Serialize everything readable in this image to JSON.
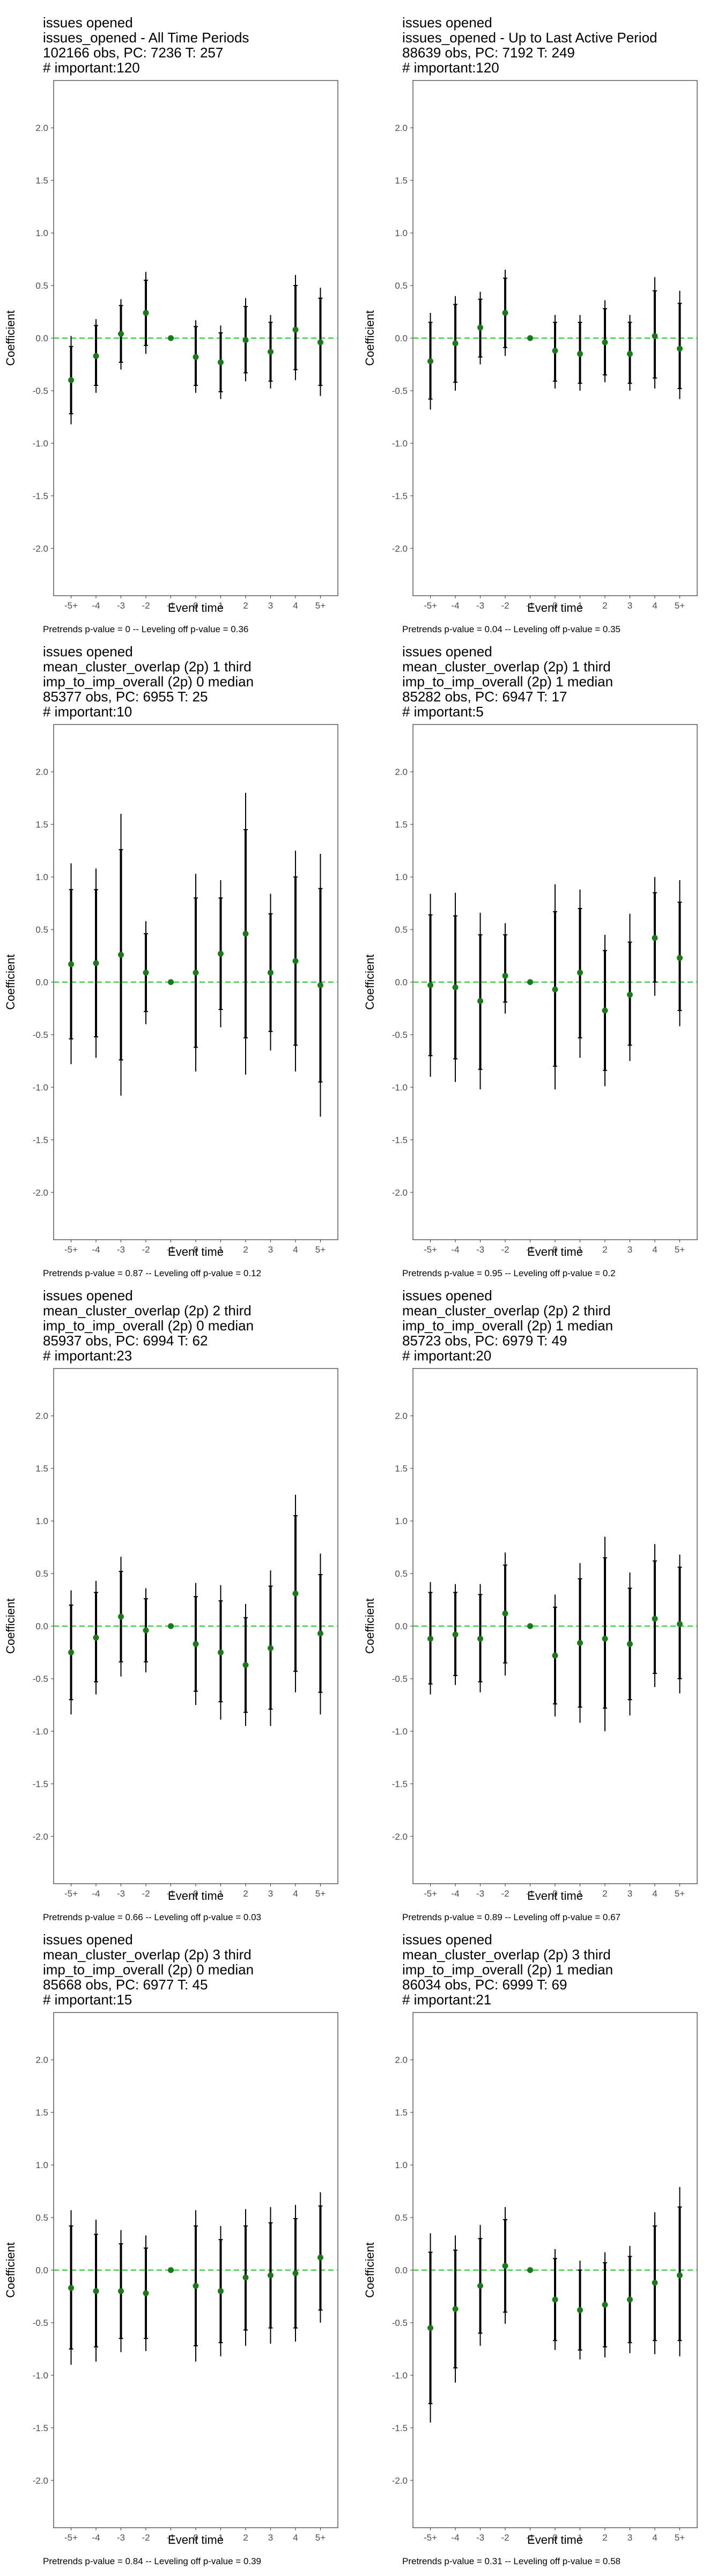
{
  "colors": {
    "zero_line": "#33cc33",
    "point": "#1a7a1a",
    "ci": "#000000",
    "tick_text": "#4d4d4d",
    "frame": "#333333"
  },
  "shared": {
    "ylabel": "Coefficient",
    "xlabel": "Event time",
    "x_ticks": [
      "-5+",
      "-4",
      "-3",
      "-2",
      "-1",
      "0",
      "1",
      "2",
      "3",
      "4",
      "5+"
    ],
    "y_ticks": [
      -2.0,
      -1.5,
      -1.0,
      -0.5,
      0.0,
      0.5,
      1.0,
      1.5,
      2.0
    ],
    "y_tick_labels": [
      "-2.0",
      "-1.5",
      "-1.0",
      "-0.5",
      "0.0",
      "0.5",
      "1.0",
      "1.5",
      "2.0"
    ],
    "ylim": [
      -2.45,
      2.45
    ]
  },
  "panels": [
    {
      "title": [
        "issues opened",
        "issues_opened - All Time Periods",
        "102166 obs, PC: 7236 T: 257",
        "# important:120"
      ],
      "footer": "Pretrends p-value = 0 -- Leveling off p-value = 0.36"
    },
    {
      "title": [
        "issues opened",
        "issues_opened - Up to Last Active Period",
        "88639 obs, PC: 7192 T: 249",
        "# important:120"
      ],
      "footer": "Pretrends p-value = 0.04 -- Leveling off p-value = 0.35"
    },
    {
      "title": [
        "issues opened",
        "mean_cluster_overlap (2p) 1 third",
        "imp_to_imp_overall (2p) 0 median",
        "85377 obs, PC: 6955 T: 25",
        "# important:10"
      ],
      "footer": "Pretrends p-value = 0.87 -- Leveling off p-value = 0.12"
    },
    {
      "title": [
        "issues opened",
        "mean_cluster_overlap (2p) 1 third",
        "imp_to_imp_overall (2p) 1 median",
        "85282 obs, PC: 6947 T: 17",
        "# important:5"
      ],
      "footer": "Pretrends p-value = 0.95 -- Leveling off p-value = 0.2"
    },
    {
      "title": [
        "issues opened",
        "mean_cluster_overlap (2p) 2 third",
        "imp_to_imp_overall (2p) 0 median",
        "85937 obs, PC: 6994 T: 62",
        "# important:23"
      ],
      "footer": "Pretrends p-value = 0.66 -- Leveling off p-value = 0.03"
    },
    {
      "title": [
        "issues opened",
        "mean_cluster_overlap (2p) 2 third",
        "imp_to_imp_overall (2p) 1 median",
        "85723 obs, PC: 6979 T: 49",
        "# important:20"
      ],
      "footer": "Pretrends p-value = 0.89 -- Leveling off p-value = 0.67"
    },
    {
      "title": [
        "issues opened",
        "mean_cluster_overlap (2p) 3 third",
        "imp_to_imp_overall (2p) 0 median",
        "85668 obs, PC: 6977 T: 45",
        "# important:15"
      ],
      "footer": "Pretrends p-value = 0.84 -- Leveling off p-value = 0.39"
    },
    {
      "title": [
        "issues opened",
        "mean_cluster_overlap (2p) 3 third",
        "imp_to_imp_overall (2p) 1 median",
        "86034 obs, PC: 6999 T: 69",
        "# important:21"
      ],
      "footer": "Pretrends p-value = 0.31 -- Leveling off p-value = 0.58"
    }
  ],
  "chart_data": [
    {
      "type": "scatter",
      "points": [
        {
          "x": "-5+",
          "y": -0.4,
          "lo95": -0.82,
          "hi95": 0.02,
          "lo90": -0.72,
          "hi90": -0.08
        },
        {
          "x": "-4",
          "y": -0.17,
          "lo95": -0.52,
          "hi95": 0.18,
          "lo90": -0.45,
          "hi90": 0.12
        },
        {
          "x": "-3",
          "y": 0.04,
          "lo95": -0.3,
          "hi95": 0.37,
          "lo90": -0.23,
          "hi90": 0.31
        },
        {
          "x": "-2",
          "y": 0.24,
          "lo95": -0.15,
          "hi95": 0.63,
          "lo90": -0.07,
          "hi90": 0.55
        },
        {
          "x": "-1",
          "y": 0.0
        },
        {
          "x": "0",
          "y": -0.18,
          "lo95": -0.52,
          "hi95": 0.17,
          "lo90": -0.45,
          "hi90": 0.11
        },
        {
          "x": "1",
          "y": -0.23,
          "lo95": -0.58,
          "hi95": 0.12,
          "lo90": -0.51,
          "hi90": 0.05
        },
        {
          "x": "2",
          "y": -0.02,
          "lo95": -0.41,
          "hi95": 0.38,
          "lo90": -0.33,
          "hi90": 0.3
        },
        {
          "x": "3",
          "y": -0.13,
          "lo95": -0.48,
          "hi95": 0.22,
          "lo90": -0.41,
          "hi90": 0.15
        },
        {
          "x": "4",
          "y": 0.08,
          "lo95": -0.4,
          "hi95": 0.6,
          "lo90": -0.3,
          "hi90": 0.5
        },
        {
          "x": "5+",
          "y": -0.04,
          "lo95": -0.55,
          "hi95": 0.48,
          "lo90": -0.45,
          "hi90": 0.38
        }
      ]
    },
    {
      "type": "scatter",
      "points": [
        {
          "x": "-5+",
          "y": -0.22,
          "lo95": -0.68,
          "hi95": 0.24,
          "lo90": -0.58,
          "hi90": 0.15
        },
        {
          "x": "-4",
          "y": -0.05,
          "lo95": -0.5,
          "hi95": 0.4,
          "lo90": -0.42,
          "hi90": 0.32
        },
        {
          "x": "-3",
          "y": 0.1,
          "lo95": -0.25,
          "hi95": 0.44,
          "lo90": -0.18,
          "hi90": 0.37
        },
        {
          "x": "-2",
          "y": 0.24,
          "lo95": -0.17,
          "hi95": 0.65,
          "lo90": -0.09,
          "hi90": 0.57
        },
        {
          "x": "-1",
          "y": 0.0
        },
        {
          "x": "0",
          "y": -0.12,
          "lo95": -0.48,
          "hi95": 0.22,
          "lo90": -0.41,
          "hi90": 0.15
        },
        {
          "x": "1",
          "y": -0.15,
          "lo95": -0.5,
          "hi95": 0.22,
          "lo90": -0.43,
          "hi90": 0.15
        },
        {
          "x": "2",
          "y": -0.04,
          "lo95": -0.42,
          "hi95": 0.36,
          "lo90": -0.35,
          "hi90": 0.28
        },
        {
          "x": "3",
          "y": -0.15,
          "lo95": -0.5,
          "hi95": 0.22,
          "lo90": -0.43,
          "hi90": 0.15
        },
        {
          "x": "4",
          "y": 0.02,
          "lo95": -0.48,
          "hi95": 0.58,
          "lo90": -0.38,
          "hi90": 0.45
        },
        {
          "x": "5+",
          "y": -0.1,
          "lo95": -0.58,
          "hi95": 0.45,
          "lo90": -0.48,
          "hi90": 0.33
        }
      ]
    },
    {
      "type": "scatter",
      "points": [
        {
          "x": "-5+",
          "y": 0.17,
          "lo95": -0.78,
          "hi95": 1.13,
          "lo90": -0.54,
          "hi90": 0.88
        },
        {
          "x": "-4",
          "y": 0.18,
          "lo95": -0.72,
          "hi95": 1.08,
          "lo90": -0.52,
          "hi90": 0.88
        },
        {
          "x": "-3",
          "y": 0.26,
          "lo95": -1.08,
          "hi95": 1.6,
          "lo90": -0.74,
          "hi90": 1.26
        },
        {
          "x": "-2",
          "y": 0.09,
          "lo95": -0.4,
          "hi95": 0.58,
          "lo90": -0.28,
          "hi90": 0.46
        },
        {
          "x": "-1",
          "y": 0.0
        },
        {
          "x": "0",
          "y": 0.09,
          "lo95": -0.85,
          "hi95": 1.03,
          "lo90": -0.62,
          "hi90": 0.8
        },
        {
          "x": "1",
          "y": 0.27,
          "lo95": -0.43,
          "hi95": 0.97,
          "lo90": -0.26,
          "hi90": 0.8
        },
        {
          "x": "2",
          "y": 0.46,
          "lo95": -0.88,
          "hi95": 1.8,
          "lo90": -0.53,
          "hi90": 1.45
        },
        {
          "x": "3",
          "y": 0.09,
          "lo95": -0.65,
          "hi95": 0.84,
          "lo90": -0.47,
          "hi90": 0.65
        },
        {
          "x": "4",
          "y": 0.2,
          "lo95": -0.85,
          "hi95": 1.25,
          "lo90": -0.6,
          "hi90": 1.0
        },
        {
          "x": "5+",
          "y": -0.03,
          "lo95": -1.28,
          "hi95": 1.22,
          "lo90": -0.95,
          "hi90": 0.89
        }
      ]
    },
    {
      "type": "scatter",
      "points": [
        {
          "x": "-5+",
          "y": -0.03,
          "lo95": -0.9,
          "hi95": 0.84,
          "lo90": -0.7,
          "hi90": 0.64
        },
        {
          "x": "-4",
          "y": -0.05,
          "lo95": -0.95,
          "hi95": 0.85,
          "lo90": -0.73,
          "hi90": 0.63
        },
        {
          "x": "-3",
          "y": -0.18,
          "lo95": -1.02,
          "hi95": 0.66,
          "lo90": -0.83,
          "hi90": 0.45
        },
        {
          "x": "-2",
          "y": 0.06,
          "lo95": -0.3,
          "hi95": 0.56,
          "lo90": -0.19,
          "hi90": 0.45
        },
        {
          "x": "-1",
          "y": 0.0
        },
        {
          "x": "0",
          "y": -0.07,
          "lo95": -1.02,
          "hi95": 0.93,
          "lo90": -0.8,
          "hi90": 0.67
        },
        {
          "x": "1",
          "y": 0.09,
          "lo95": -0.72,
          "hi95": 0.88,
          "lo90": -0.53,
          "hi90": 0.7
        },
        {
          "x": "2",
          "y": -0.27,
          "lo95": -0.99,
          "hi95": 0.45,
          "lo90": -0.84,
          "hi90": 0.3
        },
        {
          "x": "3",
          "y": -0.12,
          "lo95": -0.75,
          "hi95": 0.65,
          "lo90": -0.6,
          "hi90": 0.38
        },
        {
          "x": "4",
          "y": 0.42,
          "lo95": -0.13,
          "hi95": 1.0,
          "lo90": 0.0,
          "hi90": 0.85
        },
        {
          "x": "5+",
          "y": 0.23,
          "lo95": -0.42,
          "hi95": 0.97,
          "lo90": -0.27,
          "hi90": 0.76
        }
      ]
    },
    {
      "type": "scatter",
      "points": [
        {
          "x": "-5+",
          "y": -0.25,
          "lo95": -0.84,
          "hi95": 0.34,
          "lo90": -0.7,
          "hi90": 0.2
        },
        {
          "x": "-4",
          "y": -0.11,
          "lo95": -0.65,
          "hi95": 0.43,
          "lo90": -0.53,
          "hi90": 0.32
        },
        {
          "x": "-3",
          "y": 0.09,
          "lo95": -0.48,
          "hi95": 0.66,
          "lo90": -0.34,
          "hi90": 0.52
        },
        {
          "x": "-2",
          "y": -0.04,
          "lo95": -0.44,
          "hi95": 0.36,
          "lo90": -0.34,
          "hi90": 0.26
        },
        {
          "x": "-1",
          "y": 0.0
        },
        {
          "x": "0",
          "y": -0.17,
          "lo95": -0.75,
          "hi95": 0.41,
          "lo90": -0.62,
          "hi90": 0.28
        },
        {
          "x": "1",
          "y": -0.25,
          "lo95": -0.89,
          "hi95": 0.39,
          "lo90": -0.72,
          "hi90": 0.24
        },
        {
          "x": "2",
          "y": -0.37,
          "lo95": -0.95,
          "hi95": 0.21,
          "lo90": -0.82,
          "hi90": 0.08
        },
        {
          "x": "3",
          "y": -0.21,
          "lo95": -0.95,
          "hi95": 0.53,
          "lo90": -0.79,
          "hi90": 0.38
        },
        {
          "x": "4",
          "y": 0.31,
          "lo95": -0.63,
          "hi95": 1.25,
          "lo90": -0.43,
          "hi90": 1.05
        },
        {
          "x": "5+",
          "y": -0.07,
          "lo95": -0.84,
          "hi95": 0.69,
          "lo90": -0.63,
          "hi90": 0.49
        }
      ]
    },
    {
      "type": "scatter",
      "points": [
        {
          "x": "-5+",
          "y": -0.12,
          "lo95": -0.65,
          "hi95": 0.42,
          "lo90": -0.55,
          "hi90": 0.32
        },
        {
          "x": "-4",
          "y": -0.08,
          "lo95": -0.56,
          "hi95": 0.4,
          "lo90": -0.47,
          "hi90": 0.32
        },
        {
          "x": "-3",
          "y": -0.12,
          "lo95": -0.63,
          "hi95": 0.4,
          "lo90": -0.53,
          "hi90": 0.3
        },
        {
          "x": "-2",
          "y": 0.12,
          "lo95": -0.47,
          "hi95": 0.7,
          "lo90": -0.35,
          "hi90": 0.58
        },
        {
          "x": "-1",
          "y": 0.0
        },
        {
          "x": "0",
          "y": -0.28,
          "lo95": -0.86,
          "hi95": 0.3,
          "lo90": -0.74,
          "hi90": 0.18
        },
        {
          "x": "1",
          "y": -0.16,
          "lo95": -0.92,
          "hi95": 0.6,
          "lo90": -0.77,
          "hi90": 0.45
        },
        {
          "x": "2",
          "y": -0.12,
          "lo95": -1.0,
          "hi95": 0.85,
          "lo90": -0.78,
          "hi90": 0.65
        },
        {
          "x": "3",
          "y": -0.17,
          "lo95": -0.85,
          "hi95": 0.51,
          "lo90": -0.7,
          "hi90": 0.36
        },
        {
          "x": "4",
          "y": 0.07,
          "lo95": -0.58,
          "hi95": 0.78,
          "lo90": -0.45,
          "hi90": 0.62
        },
        {
          "x": "5+",
          "y": 0.02,
          "lo95": -0.64,
          "hi95": 0.68,
          "lo90": -0.5,
          "hi90": 0.56
        }
      ]
    },
    {
      "type": "scatter",
      "points": [
        {
          "x": "-5+",
          "y": -0.17,
          "lo95": -0.9,
          "hi95": 0.57,
          "lo90": -0.75,
          "hi90": 0.42
        },
        {
          "x": "-4",
          "y": -0.2,
          "lo95": -0.87,
          "hi95": 0.48,
          "lo90": -0.73,
          "hi90": 0.34
        },
        {
          "x": "-3",
          "y": -0.2,
          "lo95": -0.78,
          "hi95": 0.38,
          "lo90": -0.65,
          "hi90": 0.25
        },
        {
          "x": "-2",
          "y": -0.22,
          "lo95": -0.77,
          "hi95": 0.33,
          "lo90": -0.65,
          "hi90": 0.21
        },
        {
          "x": "-1",
          "y": 0.0
        },
        {
          "x": "0",
          "y": -0.15,
          "lo95": -0.87,
          "hi95": 0.57,
          "lo90": -0.72,
          "hi90": 0.42
        },
        {
          "x": "1",
          "y": -0.2,
          "lo95": -0.82,
          "hi95": 0.42,
          "lo90": -0.69,
          "hi90": 0.29
        },
        {
          "x": "2",
          "y": -0.07,
          "lo95": -0.72,
          "hi95": 0.58,
          "lo90": -0.57,
          "hi90": 0.42
        },
        {
          "x": "3",
          "y": -0.05,
          "lo95": -0.7,
          "hi95": 0.6,
          "lo90": -0.55,
          "hi90": 0.45
        },
        {
          "x": "4",
          "y": -0.03,
          "lo95": -0.68,
          "hi95": 0.62,
          "lo90": -0.55,
          "hi90": 0.49
        },
        {
          "x": "5+",
          "y": 0.12,
          "lo95": -0.5,
          "hi95": 0.74,
          "lo90": -0.38,
          "hi90": 0.61
        }
      ]
    },
    {
      "type": "scatter",
      "points": [
        {
          "x": "-5+",
          "y": -0.55,
          "lo95": -1.45,
          "hi95": 0.35,
          "lo90": -1.27,
          "hi90": 0.17
        },
        {
          "x": "-4",
          "y": -0.37,
          "lo95": -1.07,
          "hi95": 0.33,
          "lo90": -0.93,
          "hi90": 0.19
        },
        {
          "x": "-3",
          "y": -0.15,
          "lo95": -0.72,
          "hi95": 0.43,
          "lo90": -0.6,
          "hi90": 0.3
        },
        {
          "x": "-2",
          "y": 0.04,
          "lo95": -0.51,
          "hi95": 0.6,
          "lo90": -0.4,
          "hi90": 0.48
        },
        {
          "x": "-1",
          "y": 0.0
        },
        {
          "x": "0",
          "y": -0.28,
          "lo95": -0.76,
          "hi95": 0.2,
          "lo90": -0.67,
          "hi90": 0.11
        },
        {
          "x": "1",
          "y": -0.38,
          "lo95": -0.85,
          "hi95": 0.09,
          "lo90": -0.76,
          "hi90": 0.0
        },
        {
          "x": "2",
          "y": -0.33,
          "lo95": -0.83,
          "hi95": 0.17,
          "lo90": -0.73,
          "hi90": 0.07
        },
        {
          "x": "3",
          "y": -0.28,
          "lo95": -0.79,
          "hi95": 0.23,
          "lo90": -0.69,
          "hi90": 0.13
        },
        {
          "x": "4",
          "y": -0.12,
          "lo95": -0.8,
          "hi95": 0.55,
          "lo90": -0.67,
          "hi90": 0.42
        },
        {
          "x": "5+",
          "y": -0.05,
          "lo95": -0.82,
          "hi95": 0.79,
          "lo90": -0.67,
          "hi90": 0.6
        }
      ]
    }
  ]
}
